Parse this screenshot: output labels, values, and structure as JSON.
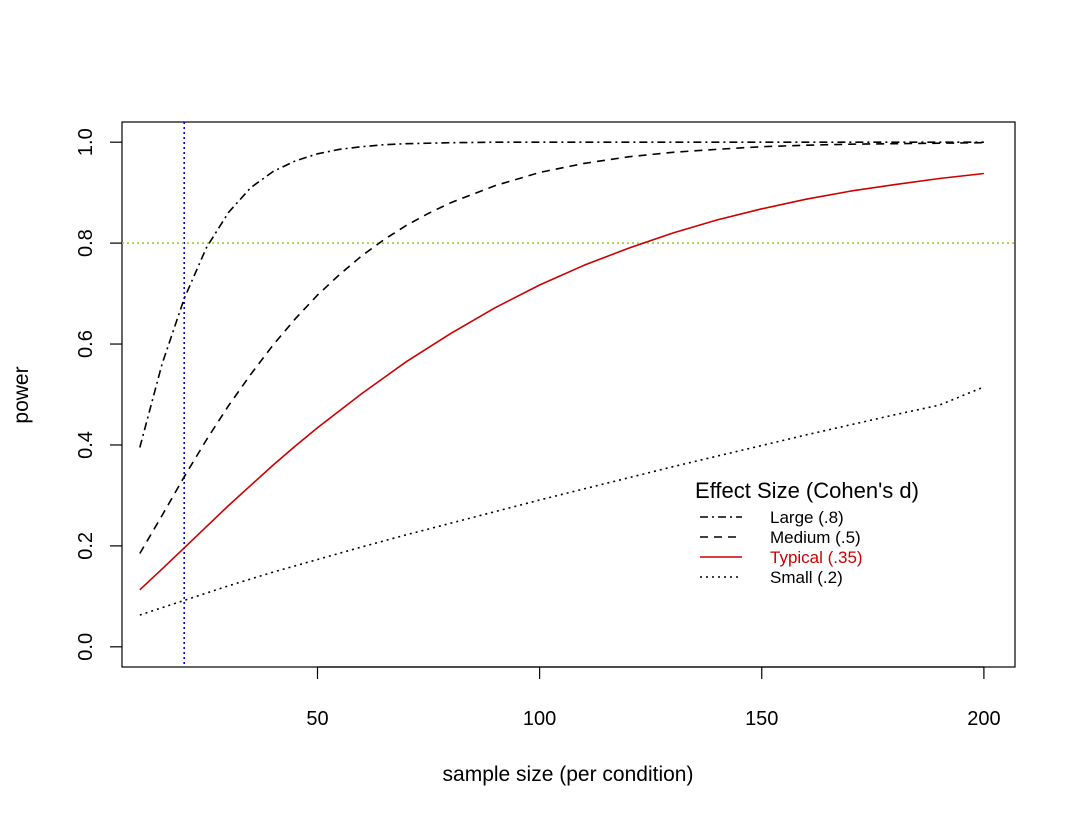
{
  "chart_data": {
    "type": "line",
    "xlabel": "sample size (per condition)",
    "ylabel": "power",
    "xlim": [
      6,
      207
    ],
    "ylim": [
      -0.04,
      1.04
    ],
    "x_ticks": [
      50,
      100,
      150,
      200
    ],
    "y_ticks": [
      0.0,
      0.2,
      0.4,
      0.6,
      0.8,
      1.0
    ],
    "x_tick_labels": [
      "50",
      "100",
      "150",
      "200"
    ],
    "y_tick_labels": [
      "0.0",
      "0.2",
      "0.4",
      "0.6",
      "0.8",
      "1.0"
    ],
    "grid": false,
    "reference_lines": [
      {
        "orientation": "vertical",
        "value": 20,
        "color": "#0000ee",
        "style": "dotted"
      },
      {
        "orientation": "horizontal",
        "value": 0.8,
        "color": "#9acd32",
        "style": "dotted"
      }
    ],
    "legend": {
      "title": "Effect Size (Cohen's d)",
      "position": "bottom-right"
    },
    "series": [
      {
        "name": "Large (.8)",
        "style": "dotdash",
        "color": "#000000",
        "x": [
          10,
          15,
          20,
          25,
          30,
          35,
          40,
          45,
          50,
          55,
          60,
          65,
          70,
          80,
          90,
          100,
          120,
          150,
          200
        ],
        "y": [
          0.395,
          0.56,
          0.69,
          0.791,
          0.861,
          0.91,
          0.942,
          0.963,
          0.977,
          0.986,
          0.991,
          0.995,
          0.997,
          0.999,
          1.0,
          1.0,
          1.0,
          1.0,
          1.0
        ]
      },
      {
        "name": "Medium (.5)",
        "style": "dashed",
        "color": "#000000",
        "x": [
          10,
          15,
          20,
          25,
          30,
          35,
          40,
          45,
          50,
          55,
          60,
          65,
          70,
          75,
          80,
          90,
          100,
          110,
          120,
          130,
          140,
          150,
          160,
          170,
          180,
          200
        ],
        "y": [
          0.185,
          0.26,
          0.337,
          0.41,
          0.478,
          0.54,
          0.598,
          0.65,
          0.697,
          0.738,
          0.775,
          0.807,
          0.835,
          0.859,
          0.88,
          0.914,
          0.94,
          0.958,
          0.971,
          0.98,
          0.986,
          0.991,
          0.994,
          0.996,
          0.997,
          0.999
        ]
      },
      {
        "name": "Typical (.35)",
        "style": "solid",
        "color": "#cc0000",
        "x": [
          10,
          15,
          20,
          25,
          30,
          35,
          40,
          45,
          50,
          60,
          70,
          80,
          90,
          100,
          110,
          120,
          130,
          140,
          150,
          160,
          170,
          180,
          190,
          200
        ],
        "y": [
          0.113,
          0.154,
          0.196,
          0.238,
          0.28,
          0.32,
          0.36,
          0.398,
          0.434,
          0.502,
          0.565,
          0.621,
          0.672,
          0.717,
          0.756,
          0.79,
          0.82,
          0.846,
          0.868,
          0.887,
          0.903,
          0.916,
          0.928,
          0.938
        ]
      },
      {
        "name": "Small (.2)",
        "style": "dotted",
        "color": "#000000",
        "x": [
          10,
          20,
          30,
          40,
          50,
          60,
          70,
          80,
          90,
          100,
          110,
          120,
          130,
          140,
          150,
          160,
          170,
          180,
          190,
          200
        ],
        "y": [
          0.063,
          0.092,
          0.121,
          0.148,
          0.173,
          0.198,
          0.222,
          0.245,
          0.268,
          0.291,
          0.313,
          0.335,
          0.357,
          0.378,
          0.399,
          0.42,
          0.44,
          0.46,
          0.479,
          0.515
        ]
      }
    ]
  }
}
